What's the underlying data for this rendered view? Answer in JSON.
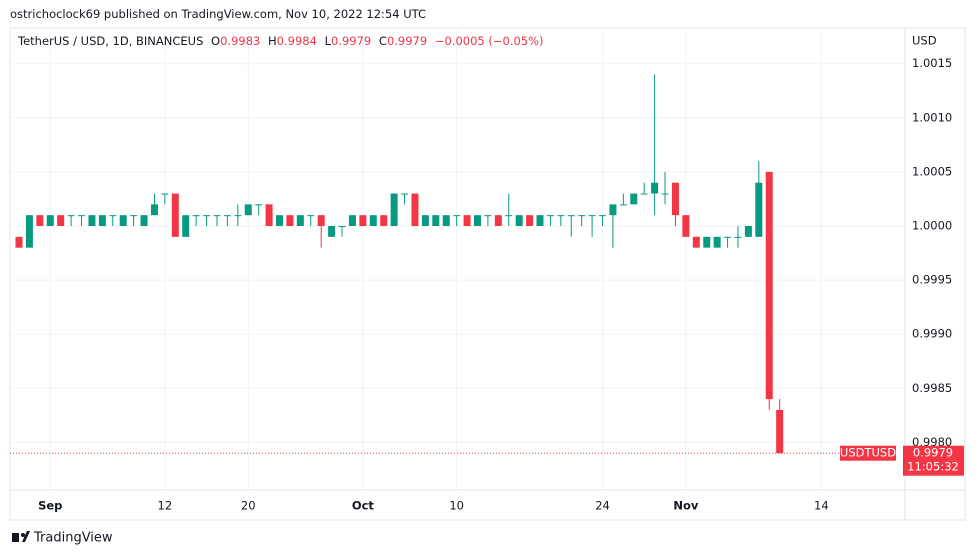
{
  "header": {
    "publisher": "ostrichoclock69 published on TradingView.com, Nov 10, 2022 12:54 UTC",
    "symbol": "TetherUS / USD, 1D, BINANCEUS",
    "ohlc_labels": [
      "O",
      "H",
      "L",
      "C"
    ],
    "change": "−0.0005 (−0.05%)"
  },
  "chart_data": {
    "type": "candlestick",
    "categories": [
      null,
      null,
      null,
      "Sep",
      null,
      null,
      null,
      null,
      null,
      null,
      null,
      null,
      null,
      null,
      "12",
      null,
      null,
      null,
      null,
      null,
      null,
      null,
      "20",
      null,
      null,
      null,
      null,
      null,
      null,
      null,
      null,
      null,
      null,
      "Oct",
      null,
      null,
      null,
      null,
      null,
      null,
      null,
      null,
      "10",
      null,
      null,
      null,
      null,
      null,
      null,
      null,
      null,
      null,
      null,
      null,
      null,
      null,
      "24",
      null,
      null,
      null,
      null,
      null,
      null,
      null,
      "Nov",
      null,
      null,
      null,
      null,
      null,
      null,
      null,
      null,
      null,
      null,
      null,
      null,
      "14"
    ],
    "open": [
      0.9999,
      0.9998,
      1.0001,
      1.0,
      1.0001,
      1.0001,
      1.0001,
      1.0,
      1.0,
      1.0001,
      1.0,
      1.0001,
      1.0,
      1.0001,
      1.0003,
      1.0003,
      0.9999,
      1.0001,
      1.0001,
      1.0001,
      1.0001,
      1.0001,
      1.0001,
      1.0002,
      1.0002,
      1.0,
      1.0001,
      1.0,
      1.0001,
      1.0001,
      0.9999,
      1.0,
      1.0,
      1.0001,
      1.0,
      1.0001,
      1.0,
      1.0003,
      1.0003,
      1.0,
      1.0,
      1.0,
      1.0001,
      1.0001,
      1.0,
      1.0001,
      1.0001,
      1.0001,
      1.0,
      1.0001,
      1.0,
      1.0001,
      1.0001,
      1.0001,
      1.0001,
      1.0001,
      1.0001,
      1.0001,
      1.0002,
      1.0002,
      1.0003,
      1.0003,
      1.0003,
      1.0004,
      1.0001,
      0.9999,
      0.9998,
      0.9998,
      0.9999,
      0.9999,
      0.9999,
      0.9999,
      1.0005,
      0.9983,
      null,
      null,
      null,
      null
    ],
    "high": [
      0.9999,
      1.0001,
      1.0001,
      1.0001,
      1.0001,
      1.0001,
      1.0001,
      1.0001,
      1.0001,
      1.0001,
      1.0001,
      1.0001,
      1.0001,
      1.0003,
      1.0003,
      1.0003,
      1.0001,
      1.0001,
      1.0001,
      1.0001,
      1.0001,
      1.0002,
      1.0002,
      1.0002,
      1.0002,
      1.0001,
      1.0001,
      1.0001,
      1.0001,
      1.0001,
      1.0,
      1.0,
      1.0001,
      1.0001,
      1.0001,
      1.0001,
      1.0003,
      1.0003,
      1.0003,
      1.0001,
      1.0001,
      1.0001,
      1.0001,
      1.0001,
      1.0001,
      1.0001,
      1.0001,
      1.0003,
      1.0001,
      1.0001,
      1.0001,
      1.0001,
      1.0001,
      1.0001,
      1.0001,
      1.0001,
      1.0001,
      1.0002,
      1.0003,
      1.0003,
      1.0004,
      1.0014,
      1.0005,
      1.0004,
      1.0001,
      0.9999,
      0.9999,
      0.9999,
      0.9999,
      1.0,
      1.0,
      1.0006,
      1.0005,
      0.9984,
      null,
      null,
      null,
      null
    ],
    "low": [
      0.9998,
      0.9998,
      1.0,
      1.0,
      1.0,
      1.0,
      1.0,
      1.0,
      1.0,
      1.0,
      1.0,
      1.0,
      1.0,
      1.0001,
      1.0002,
      0.9999,
      0.9999,
      1.0,
      1.0,
      1.0,
      1.0,
      1.0,
      1.0001,
      1.0001,
      1.0,
      1.0,
      1.0,
      1.0,
      1.0,
      0.9998,
      0.9999,
      0.9999,
      1.0,
      1.0,
      1.0,
      1.0,
      1.0,
      1.0002,
      1.0,
      1.0,
      1.0,
      1.0,
      1.0,
      1.0,
      1.0,
      1.0,
      1.0,
      1.0,
      1.0,
      1.0,
      1.0,
      1.0,
      1.0,
      0.9999,
      1.0,
      0.9999,
      1.0,
      0.9998,
      1.0002,
      1.0002,
      1.0003,
      1.0001,
      1.0002,
      1.0,
      0.9999,
      0.9998,
      0.9998,
      0.9998,
      0.9998,
      0.9998,
      0.9999,
      0.9999,
      0.9983,
      0.9979,
      null,
      null,
      null,
      null
    ],
    "close": [
      0.9998,
      1.0001,
      1.0,
      1.0001,
      1.0,
      1.0001,
      1.0001,
      1.0001,
      1.0001,
      1.0001,
      1.0001,
      1.0001,
      1.0001,
      1.0002,
      1.0003,
      0.9999,
      1.0001,
      1.0001,
      1.0001,
      1.0001,
      1.0001,
      1.0001,
      1.0002,
      1.0002,
      1.0,
      1.0001,
      1.0,
      1.0001,
      1.0001,
      1.0,
      1.0,
      1.0,
      1.0001,
      1.0,
      1.0001,
      1.0,
      1.0003,
      1.0003,
      1.0,
      1.0001,
      1.0001,
      1.0001,
      1.0001,
      1.0,
      1.0001,
      1.0001,
      1.0,
      1.0001,
      1.0001,
      1.0,
      1.0001,
      1.0001,
      1.0001,
      1.0001,
      1.0001,
      1.0001,
      1.0001,
      1.0002,
      1.0002,
      1.0003,
      1.0003,
      1.0004,
      1.0003,
      1.0001,
      0.9999,
      0.9998,
      0.9999,
      0.9999,
      0.9999,
      0.9999,
      1.0,
      1.0004,
      0.9984,
      0.9979,
      null,
      null,
      null,
      null
    ],
    "up_color": "#089981",
    "down_color": "#f23645",
    "ylim": [
      0.99756,
      1.00183
    ],
    "yticks": [
      {
        "value": 0.998,
        "label": "0.9980"
      },
      0.9985,
      {
        "value": 0.999,
        "label": "0.9990"
      },
      0.9995,
      {
        "value": 1,
        "label": "1.0000"
      },
      1.0005,
      {
        "value": 1.001,
        "label": "1.0010"
      },
      1.0015
    ],
    "grid": true,
    "axis_unit": "USD",
    "price_label": {
      "symbol": "USDTUSD",
      "countdown": "11:05:32"
    }
  },
  "footer": {
    "brand": "TradingView"
  }
}
